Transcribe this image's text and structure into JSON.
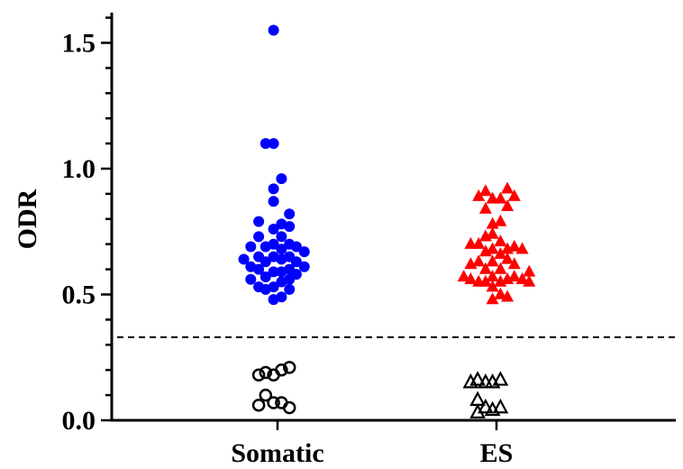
{
  "chart_data": {
    "type": "scatter",
    "title": "",
    "xlabel": "",
    "ylabel": "ODR",
    "categories": [
      "Somatic",
      "ES"
    ],
    "ylim": [
      0,
      1.6
    ],
    "y_ticks": [
      "0.0",
      "0.5",
      "1.0",
      "1.5"
    ],
    "threshold": 0.33,
    "grid": false,
    "legend": "none",
    "series": [
      {
        "category": "Somatic",
        "marker": "circle",
        "filled": true,
        "color": "#0000ff",
        "points": [
          [
            -0.34,
            0.64
          ],
          [
            -0.27,
            0.69
          ],
          [
            -0.27,
            0.61
          ],
          [
            -0.27,
            0.56
          ],
          [
            -0.19,
            0.79
          ],
          [
            -0.19,
            0.73
          ],
          [
            -0.19,
            0.65
          ],
          [
            -0.19,
            0.6
          ],
          [
            -0.19,
            0.53
          ],
          [
            -0.12,
            0.69
          ],
          [
            -0.12,
            0.63
          ],
          [
            -0.12,
            0.57
          ],
          [
            -0.12,
            0.52
          ],
          [
            -0.12,
            1.1
          ],
          [
            -0.04,
            1.1
          ],
          [
            -0.04,
            0.92
          ],
          [
            -0.04,
            0.87
          ],
          [
            -0.04,
            0.76
          ],
          [
            -0.04,
            0.7
          ],
          [
            -0.04,
            0.65
          ],
          [
            -0.04,
            0.59
          ],
          [
            -0.04,
            0.53
          ],
          [
            -0.04,
            0.48
          ],
          [
            -0.04,
            1.55
          ],
          [
            0.04,
            0.96
          ],
          [
            0.04,
            0.78
          ],
          [
            0.04,
            0.73
          ],
          [
            0.04,
            0.68
          ],
          [
            0.04,
            0.64
          ],
          [
            0.04,
            0.59
          ],
          [
            0.04,
            0.55
          ],
          [
            0.04,
            0.49
          ],
          [
            0.12,
            0.82
          ],
          [
            0.12,
            0.77
          ],
          [
            0.12,
            0.7
          ],
          [
            0.12,
            0.65
          ],
          [
            0.12,
            0.6
          ],
          [
            0.12,
            0.56
          ],
          [
            0.12,
            0.52
          ],
          [
            0.19,
            0.69
          ],
          [
            0.19,
            0.63
          ],
          [
            0.19,
            0.58
          ],
          [
            0.27,
            0.67
          ],
          [
            0.27,
            0.61
          ]
        ]
      },
      {
        "category": "Somatic",
        "marker": "circle",
        "filled": false,
        "color": "#000000",
        "points": [
          [
            -0.19,
            0.18
          ],
          [
            -0.12,
            0.19
          ],
          [
            -0.04,
            0.18
          ],
          [
            0.04,
            0.2
          ],
          [
            0.12,
            0.21
          ],
          [
            -0.19,
            0.06
          ],
          [
            -0.12,
            0.1
          ],
          [
            -0.04,
            0.07
          ],
          [
            0.04,
            0.07
          ],
          [
            0.12,
            0.05
          ]
        ]
      },
      {
        "category": "ES",
        "marker": "triangle",
        "filled": true,
        "color": "#ff0000",
        "points": [
          [
            -0.33,
            0.57
          ],
          [
            -0.26,
            0.7
          ],
          [
            -0.26,
            0.62
          ],
          [
            -0.26,
            0.56
          ],
          [
            -0.18,
            0.89
          ],
          [
            -0.18,
            0.7
          ],
          [
            -0.18,
            0.63
          ],
          [
            -0.18,
            0.55
          ],
          [
            -0.11,
            0.91
          ],
          [
            -0.11,
            0.84
          ],
          [
            -0.11,
            0.73
          ],
          [
            -0.11,
            0.67
          ],
          [
            -0.11,
            0.6
          ],
          [
            -0.11,
            0.55
          ],
          [
            -0.04,
            0.88
          ],
          [
            -0.04,
            0.78
          ],
          [
            -0.04,
            0.74
          ],
          [
            -0.04,
            0.68
          ],
          [
            -0.04,
            0.63
          ],
          [
            -0.04,
            0.57
          ],
          [
            -0.04,
            0.53
          ],
          [
            -0.04,
            0.48
          ],
          [
            0.04,
            0.88
          ],
          [
            0.04,
            0.79
          ],
          [
            0.04,
            0.71
          ],
          [
            0.04,
            0.66
          ],
          [
            0.04,
            0.6
          ],
          [
            0.04,
            0.55
          ],
          [
            0.04,
            0.5
          ],
          [
            0.11,
            0.92
          ],
          [
            0.11,
            0.85
          ],
          [
            0.11,
            0.68
          ],
          [
            0.11,
            0.64
          ],
          [
            0.11,
            0.56
          ],
          [
            0.11,
            0.49
          ],
          [
            0.18,
            0.89
          ],
          [
            0.18,
            0.69
          ],
          [
            0.18,
            0.62
          ],
          [
            0.18,
            0.57
          ],
          [
            0.26,
            0.68
          ],
          [
            0.26,
            0.56
          ],
          [
            0.33,
            0.59
          ],
          [
            0.33,
            0.55
          ]
        ]
      },
      {
        "category": "ES",
        "marker": "triangle",
        "filled": false,
        "color": "#000000",
        "points": [
          [
            -0.26,
            0.15
          ],
          [
            -0.19,
            0.16
          ],
          [
            -0.11,
            0.15
          ],
          [
            -0.04,
            0.15
          ],
          [
            0.04,
            0.16
          ],
          [
            -0.19,
            0.08
          ],
          [
            -0.19,
            0.03
          ],
          [
            -0.11,
            0.05
          ],
          [
            -0.04,
            0.04
          ],
          [
            0.04,
            0.05
          ]
        ]
      }
    ]
  }
}
